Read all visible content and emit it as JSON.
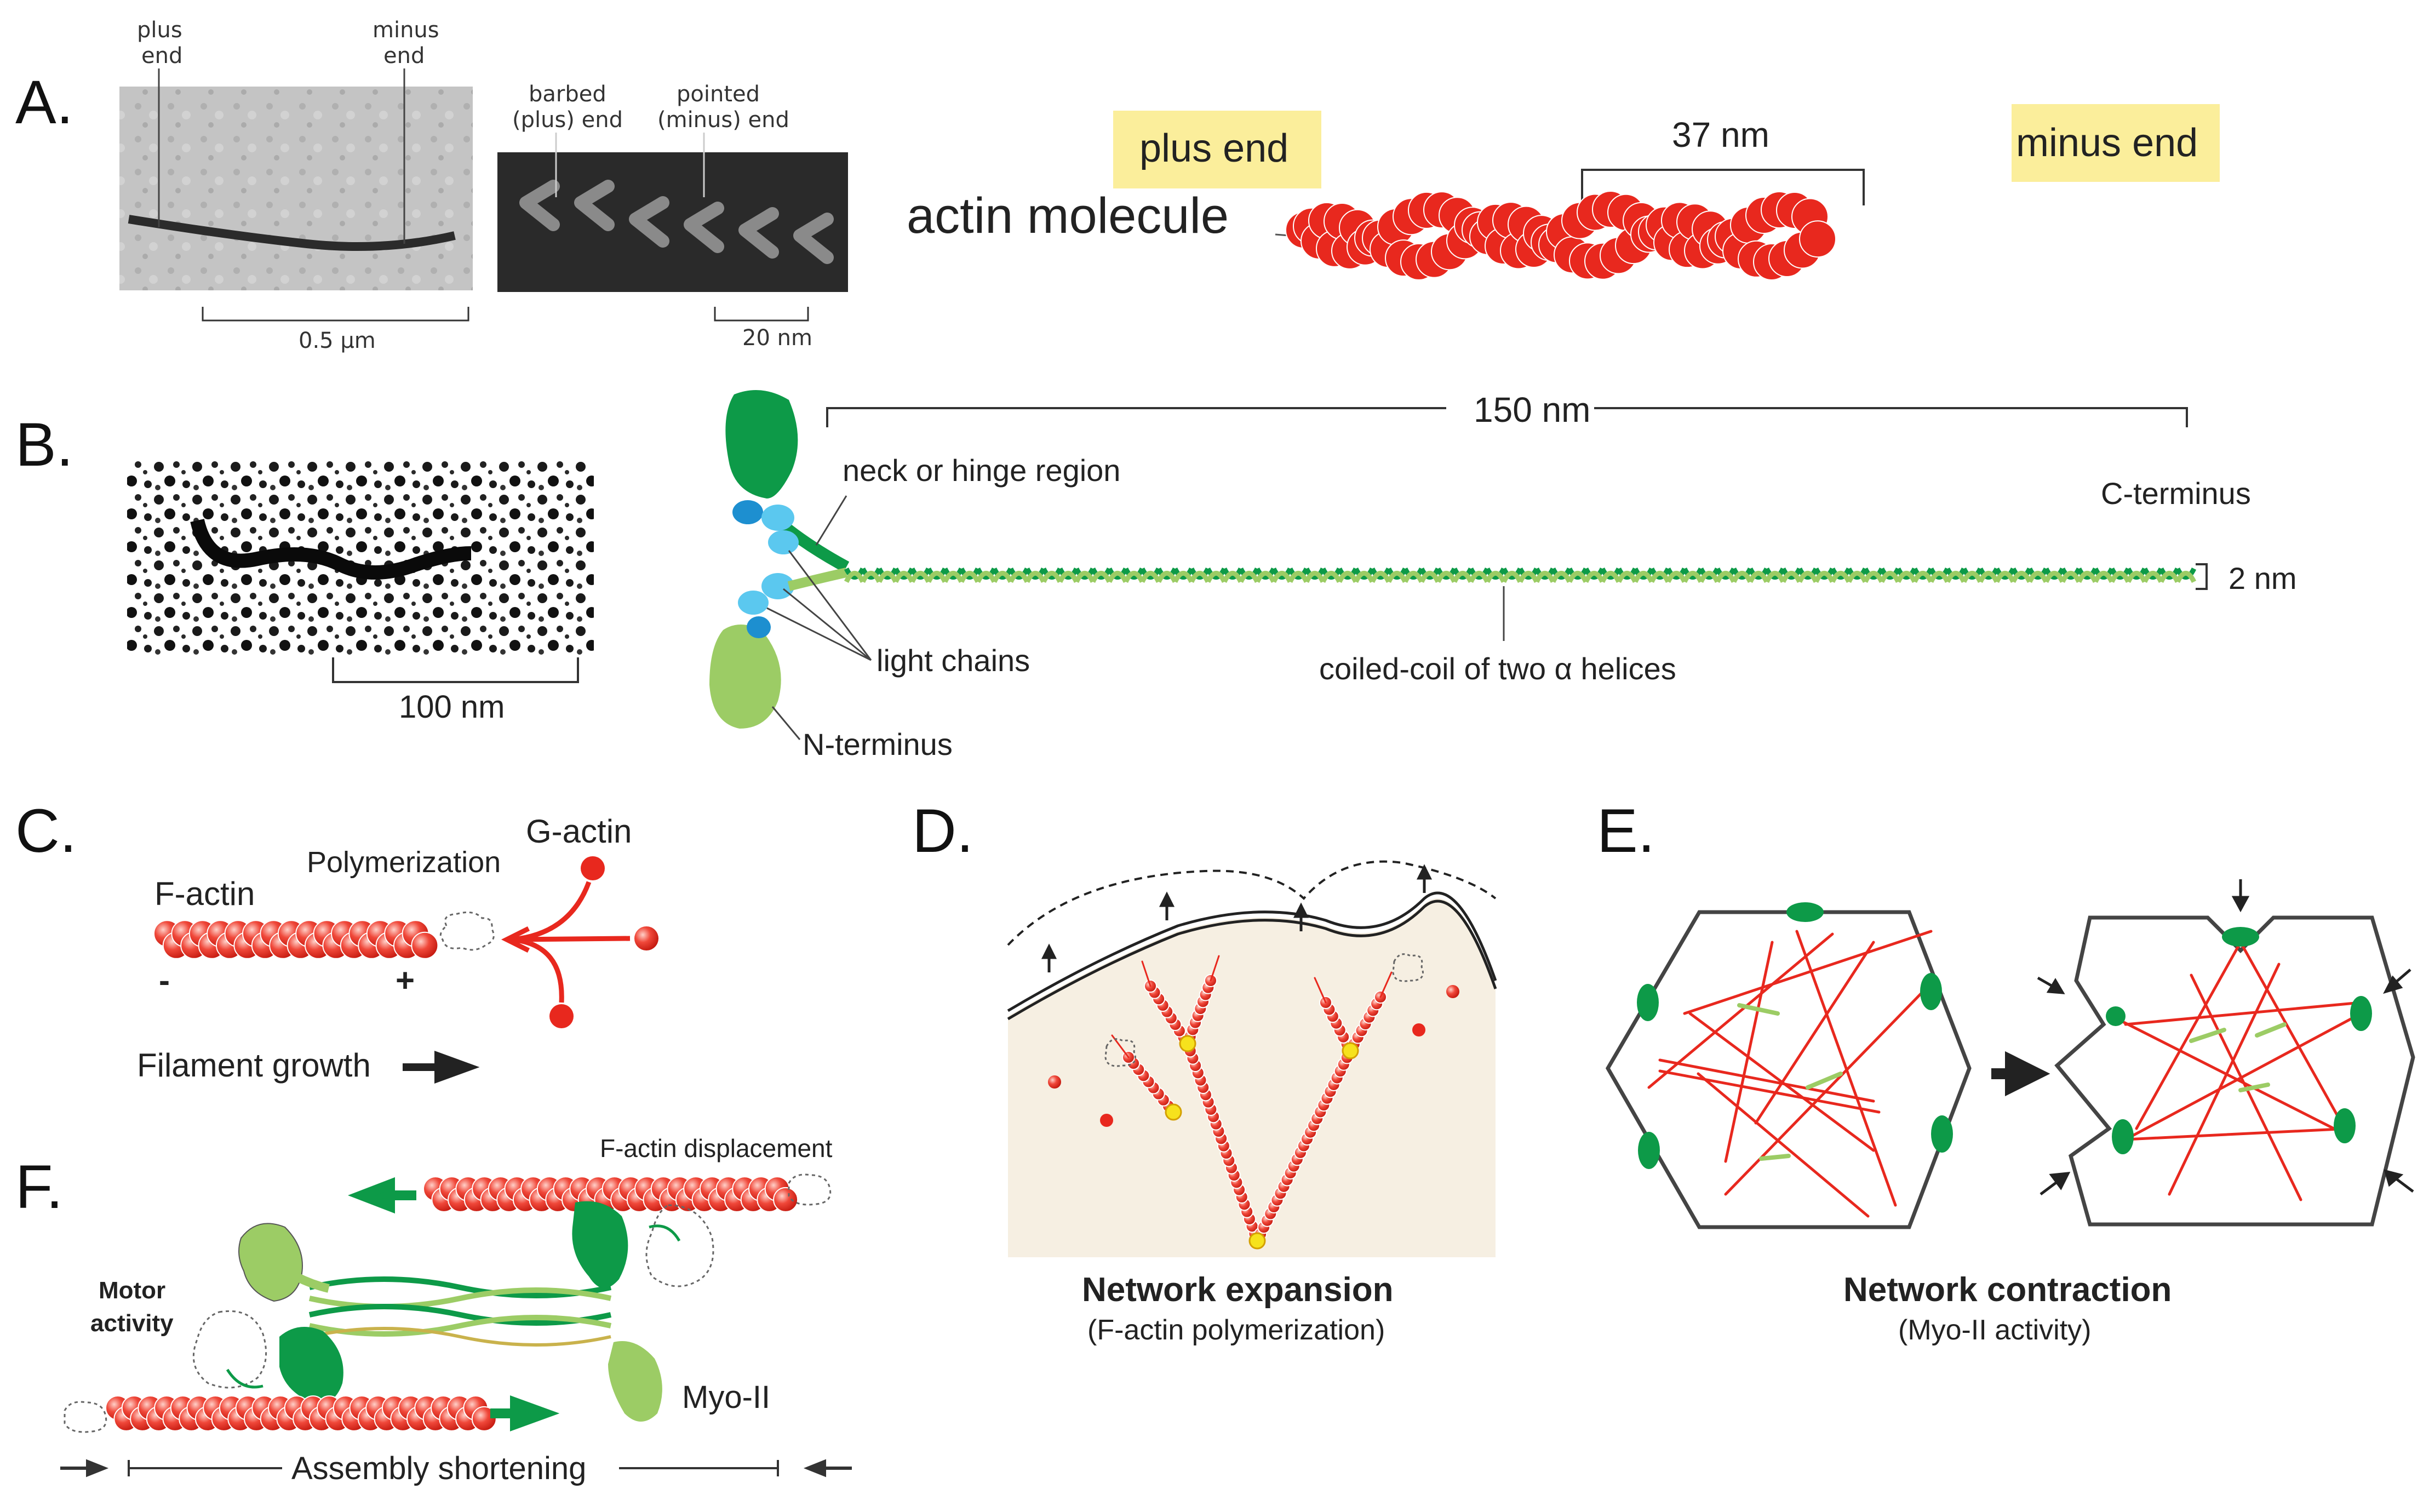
{
  "panels": {
    "a": "A.",
    "b": "B.",
    "c": "C.",
    "d": "D.",
    "e": "E.",
    "f": "F."
  },
  "panel_a": {
    "micrograph1_plus": [
      "plus",
      "end"
    ],
    "micrograph1_minus": [
      "minus",
      "end"
    ],
    "scale1": "0.5 μm",
    "micrograph2_barbed": [
      "barbed",
      "(plus) end"
    ],
    "micrograph2_pointed": [
      "pointed",
      "(minus) end"
    ],
    "scale2": "20 nm",
    "plus_end": "plus end",
    "minus_end": "minus end",
    "actin_molecule": "actin molecule",
    "repeat_length": "37 nm"
  },
  "panel_b": {
    "scale": "100 nm",
    "length": "150 nm",
    "neck": "neck or hinge region",
    "c_terminus": "C-terminus",
    "width": "2 nm",
    "light_chains": "light chains",
    "coiled_coil": "coiled-coil of two α helices",
    "n_terminus": "N-terminus"
  },
  "panel_c": {
    "g_actin": "G-actin",
    "polymerization": "Polymerization",
    "f_actin": "F-actin",
    "minus_sign": "-",
    "plus_sign": "+",
    "growth": "Filament growth"
  },
  "panel_d": {
    "title": "Network expansion",
    "subtitle": "(F-actin polymerization)"
  },
  "panel_e": {
    "title": "Network contraction",
    "subtitle": "(Myo-II activity)"
  },
  "panel_f": {
    "displacement": "F-actin displacement",
    "motor": [
      "Motor",
      "activity"
    ],
    "myo": "Myo-II",
    "shortening": "Assembly shortening"
  },
  "colors": {
    "actin_red": "#e8281e",
    "myosin_dark_green": "#0d9a48",
    "myosin_light_green": "#9ccc65",
    "light_chain_cyan": "#5bc8ef",
    "highlight_yellow": "#fbee9b",
    "branch_yellow": "#f6e21d"
  },
  "icons": [
    "arrow-right-icon",
    "arrow-left-icon",
    "arrow-up-icon"
  ]
}
